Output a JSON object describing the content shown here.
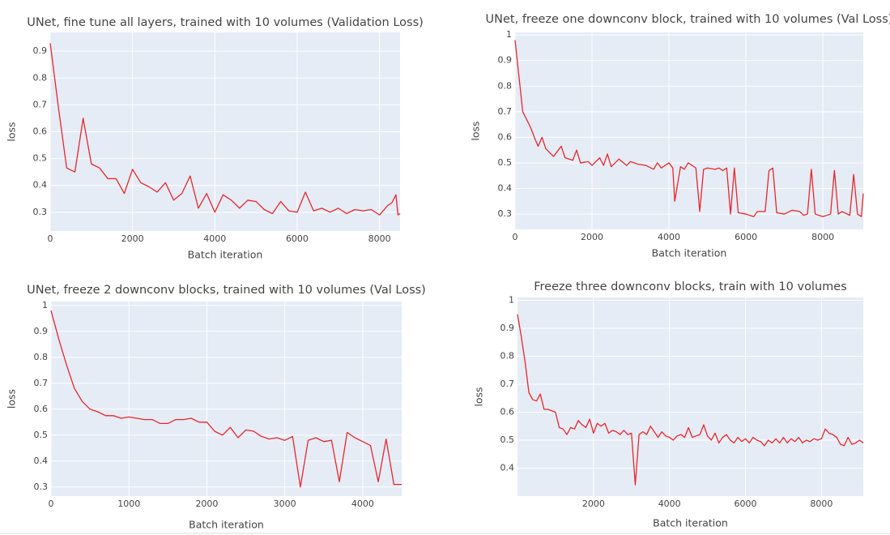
{
  "chart_data": [
    {
      "type": "line",
      "title": "UNet, fine tune all layers, trained with 10 volumes (Validation Loss)",
      "xlabel": "Batch iteration",
      "ylabel": "loss",
      "color": "#e8262b",
      "grid": true,
      "xlim": [
        0,
        8500
      ],
      "xticks": [
        0,
        2000,
        4000,
        6000,
        8000
      ],
      "ylim": [
        0.23,
        0.97
      ],
      "yticks": [
        0.3,
        0.4,
        0.5,
        0.6,
        0.7,
        0.8,
        0.9
      ],
      "x": [
        0,
        200,
        400,
        600,
        800,
        1000,
        1200,
        1400,
        1600,
        1800,
        2000,
        2200,
        2400,
        2600,
        2800,
        3000,
        3200,
        3400,
        3600,
        3800,
        4000,
        4200,
        4400,
        4600,
        4800,
        5000,
        5200,
        5400,
        5600,
        5800,
        6000,
        6200,
        6400,
        6600,
        6800,
        7000,
        7200,
        7400,
        7600,
        7800,
        8000,
        8200,
        8300,
        8400,
        8450,
        8500
      ],
      "values": [
        0.93,
        0.69,
        0.465,
        0.45,
        0.65,
        0.48,
        0.465,
        0.425,
        0.425,
        0.37,
        0.46,
        0.41,
        0.395,
        0.375,
        0.41,
        0.345,
        0.37,
        0.435,
        0.315,
        0.37,
        0.3,
        0.365,
        0.345,
        0.315,
        0.345,
        0.34,
        0.31,
        0.295,
        0.34,
        0.305,
        0.3,
        0.375,
        0.305,
        0.315,
        0.3,
        0.315,
        0.295,
        0.31,
        0.305,
        0.31,
        0.29,
        0.325,
        0.335,
        0.365,
        0.29,
        0.295
      ]
    },
    {
      "type": "line",
      "title": "UNet, freeze one downconv block, trained with 10 volumes (Val Loss)",
      "xlabel": "Batch iteration",
      "ylabel": "loss",
      "color": "#e8262b",
      "grid": true,
      "xlim": [
        0,
        9050
      ],
      "xticks": [
        0,
        2000,
        4000,
        6000,
        8000
      ],
      "ylim": [
        0.24,
        1.01
      ],
      "yticks": [
        0.3,
        0.4,
        0.5,
        0.6,
        0.7,
        0.8,
        0.9,
        1
      ],
      "x": [
        0,
        200,
        400,
        500,
        600,
        700,
        800,
        1000,
        1200,
        1300,
        1500,
        1600,
        1700,
        1900,
        2000,
        2200,
        2300,
        2400,
        2500,
        2700,
        2900,
        3000,
        3200,
        3400,
        3600,
        3700,
        3800,
        4000,
        4100,
        4150,
        4300,
        4400,
        4500,
        4700,
        4800,
        4900,
        5000,
        5200,
        5300,
        5400,
        5500,
        5600,
        5700,
        5800,
        6000,
        6200,
        6300,
        6500,
        6600,
        6700,
        6800,
        7000,
        7200,
        7400,
        7500,
        7600,
        7700,
        7800,
        8000,
        8200,
        8300,
        8400,
        8500,
        8700,
        8800,
        8900,
        9000,
        9050
      ],
      "values": [
        0.98,
        0.7,
        0.64,
        0.6,
        0.565,
        0.6,
        0.555,
        0.525,
        0.565,
        0.52,
        0.51,
        0.55,
        0.5,
        0.505,
        0.49,
        0.52,
        0.49,
        0.535,
        0.485,
        0.515,
        0.49,
        0.505,
        0.495,
        0.49,
        0.475,
        0.5,
        0.48,
        0.5,
        0.48,
        0.35,
        0.485,
        0.475,
        0.5,
        0.48,
        0.31,
        0.475,
        0.48,
        0.475,
        0.48,
        0.47,
        0.48,
        0.3,
        0.48,
        0.305,
        0.3,
        0.29,
        0.31,
        0.31,
        0.47,
        0.48,
        0.305,
        0.3,
        0.315,
        0.31,
        0.295,
        0.3,
        0.475,
        0.3,
        0.29,
        0.3,
        0.47,
        0.3,
        0.31,
        0.295,
        0.455,
        0.3,
        0.29,
        0.38
      ]
    },
    {
      "type": "line",
      "title": "UNet, freeze 2 downconv blocks, trained with 10 volumes (Val Loss)",
      "xlabel": "Batch iteration",
      "ylabel": "loss",
      "color": "#e8262b",
      "grid": true,
      "xlim": [
        0,
        4500
      ],
      "xticks": [
        0,
        1000,
        2000,
        3000,
        4000
      ],
      "ylim": [
        0.265,
        1.015
      ],
      "yticks": [
        0.3,
        0.4,
        0.5,
        0.6,
        0.7,
        0.8,
        0.9,
        1
      ],
      "x": [
        0,
        100,
        200,
        300,
        400,
        500,
        600,
        700,
        800,
        900,
        1000,
        1100,
        1200,
        1300,
        1400,
        1500,
        1600,
        1700,
        1800,
        1900,
        2000,
        2100,
        2200,
        2300,
        2400,
        2500,
        2600,
        2700,
        2800,
        2900,
        3000,
        3100,
        3200,
        3300,
        3400,
        3500,
        3600,
        3700,
        3800,
        3900,
        4000,
        4100,
        4200,
        4300,
        4400,
        4500
      ],
      "values": [
        0.98,
        0.87,
        0.77,
        0.68,
        0.63,
        0.6,
        0.59,
        0.575,
        0.575,
        0.565,
        0.57,
        0.565,
        0.56,
        0.56,
        0.545,
        0.545,
        0.56,
        0.56,
        0.565,
        0.55,
        0.55,
        0.515,
        0.5,
        0.53,
        0.49,
        0.52,
        0.515,
        0.495,
        0.485,
        0.49,
        0.48,
        0.495,
        0.3,
        0.48,
        0.49,
        0.475,
        0.48,
        0.32,
        0.51,
        0.49,
        0.475,
        0.46,
        0.32,
        0.485,
        0.31,
        0.31
      ]
    },
    {
      "type": "line",
      "title": "Freeze three downconv blocks, train with 10 volumes",
      "xlabel": "Batch iteration",
      "ylabel": "loss",
      "color": "#e8262b",
      "grid": true,
      "xlim": [
        0,
        9100
      ],
      "xticks": [
        2000,
        4000,
        6000,
        8000
      ],
      "ylim": [
        0.3,
        1.01
      ],
      "yticks": [
        0.4,
        0.5,
        0.6,
        0.7,
        0.8,
        0.9,
        1
      ],
      "x": [
        0,
        100,
        200,
        300,
        400,
        500,
        600,
        700,
        800,
        900,
        1000,
        1100,
        1200,
        1300,
        1400,
        1500,
        1600,
        1700,
        1800,
        1900,
        2000,
        2100,
        2200,
        2300,
        2400,
        2500,
        2600,
        2700,
        2800,
        2900,
        3000,
        3100,
        3200,
        3300,
        3400,
        3500,
        3600,
        3700,
        3800,
        3900,
        4000,
        4100,
        4200,
        4300,
        4400,
        4500,
        4600,
        4700,
        4800,
        4900,
        5000,
        5100,
        5200,
        5300,
        5400,
        5500,
        5600,
        5700,
        5800,
        5900,
        6000,
        6100,
        6200,
        6300,
        6400,
        6500,
        6600,
        6700,
        6800,
        6900,
        7000,
        7100,
        7200,
        7300,
        7400,
        7500,
        7600,
        7700,
        7800,
        7900,
        8000,
        8100,
        8200,
        8300,
        8400,
        8500,
        8600,
        8700,
        8800,
        8900,
        9000,
        9100
      ],
      "values": [
        0.95,
        0.87,
        0.78,
        0.67,
        0.645,
        0.64,
        0.665,
        0.61,
        0.61,
        0.605,
        0.6,
        0.545,
        0.54,
        0.52,
        0.545,
        0.54,
        0.57,
        0.555,
        0.545,
        0.575,
        0.525,
        0.56,
        0.55,
        0.56,
        0.525,
        0.535,
        0.53,
        0.52,
        0.535,
        0.52,
        0.525,
        0.34,
        0.52,
        0.53,
        0.52,
        0.55,
        0.53,
        0.51,
        0.53,
        0.515,
        0.51,
        0.5,
        0.515,
        0.52,
        0.51,
        0.545,
        0.51,
        0.515,
        0.52,
        0.555,
        0.515,
        0.5,
        0.525,
        0.49,
        0.51,
        0.52,
        0.5,
        0.49,
        0.51,
        0.495,
        0.505,
        0.49,
        0.51,
        0.5,
        0.495,
        0.48,
        0.5,
        0.49,
        0.505,
        0.49,
        0.51,
        0.49,
        0.505,
        0.495,
        0.51,
        0.49,
        0.5,
        0.495,
        0.505,
        0.5,
        0.505,
        0.54,
        0.525,
        0.52,
        0.51,
        0.485,
        0.48,
        0.51,
        0.485,
        0.49,
        0.5,
        0.49
      ]
    }
  ]
}
